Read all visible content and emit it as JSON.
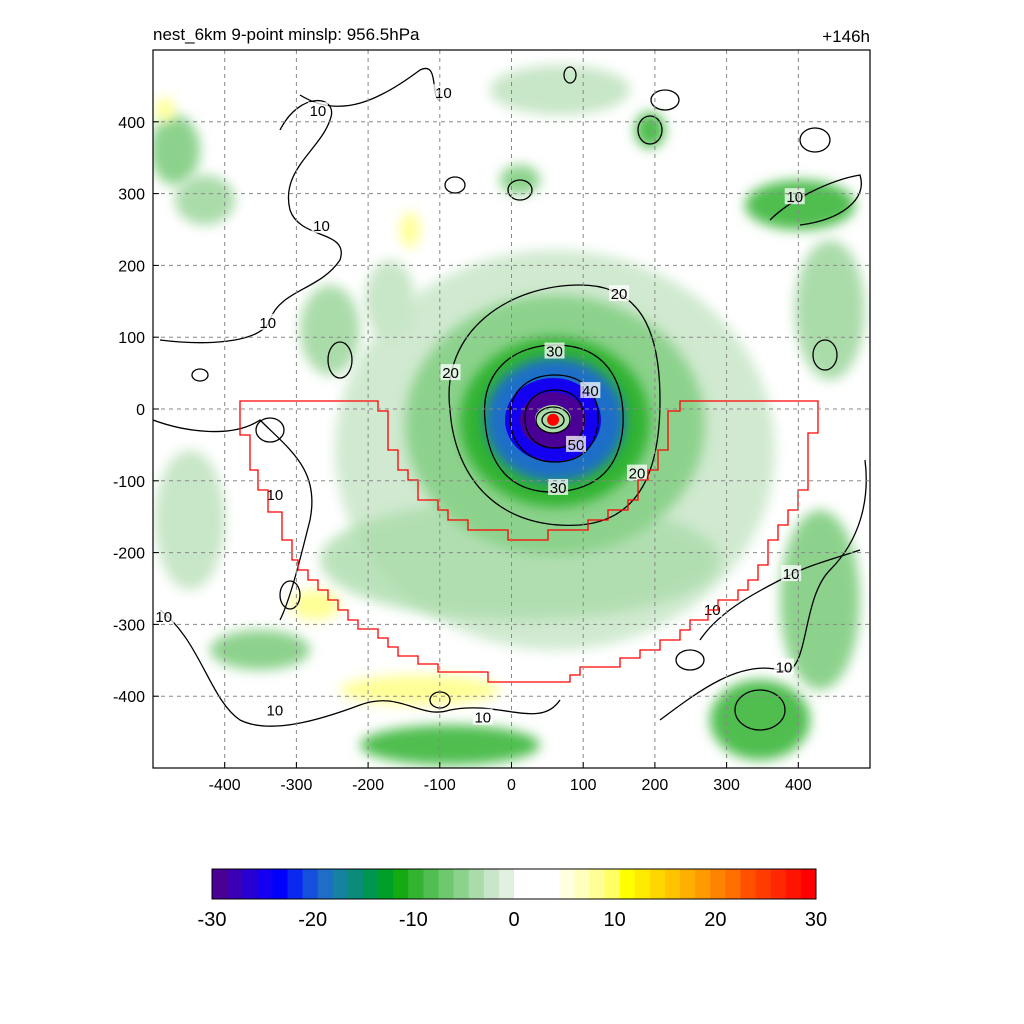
{
  "chart_data": {
    "type": "heatmap",
    "title": "nest_6km  9-point minslp: 956.5hPa",
    "time_label": "+146h",
    "x_ticks": [
      -400,
      -300,
      -200,
      -100,
      0,
      100,
      200,
      300,
      400
    ],
    "y_ticks": [
      400,
      300,
      200,
      100,
      0,
      -100,
      -200,
      -300,
      -400
    ],
    "xlim": [
      -500,
      500
    ],
    "ylim": [
      -500,
      500
    ],
    "grid": true,
    "grid_style": "dashed",
    "colorbar": {
      "min": -30,
      "max": 30,
      "ticks": [
        -30,
        -20,
        -10,
        0,
        10,
        20,
        30
      ],
      "colors": [
        "#4b0095",
        "#3c00b4",
        "#2800d2",
        "#1400f0",
        "#0000ff",
        "#0a28f0",
        "#1450dc",
        "#1e6ec8",
        "#1482a0",
        "#0a8c78",
        "#009650",
        "#00a028",
        "#14aa14",
        "#32b432",
        "#50be50",
        "#6ec86e",
        "#8cd28c",
        "#aadcaa",
        "#c8e6c8",
        "#e1f1e1",
        "#ffffff",
        "#ffffff",
        "#ffffff",
        "#ffffe1",
        "#ffffbe",
        "#ffff96",
        "#ffff64",
        "#ffff00",
        "#ffeb00",
        "#ffd700",
        "#ffc300",
        "#ffaf00",
        "#ff9b00",
        "#ff8200",
        "#ff6e00",
        "#ff5000",
        "#ff3c00",
        "#ff2800",
        "#ff1400",
        "#ff0000"
      ]
    },
    "contour_labels": [
      {
        "text": "10",
        "x": -270,
        "y": 415
      },
      {
        "text": "10",
        "x": -95,
        "y": 440
      },
      {
        "text": "10",
        "x": -265,
        "y": 255
      },
      {
        "text": "10",
        "x": -340,
        "y": 120
      },
      {
        "text": "10",
        "x": -330,
        "y": -120
      },
      {
        "text": "10",
        "x": -485,
        "y": -290
      },
      {
        "text": "10",
        "x": -330,
        "y": -420
      },
      {
        "text": "10",
        "x": -40,
        "y": -430
      },
      {
        "text": "10",
        "x": 395,
        "y": 295
      },
      {
        "text": "10",
        "x": 390,
        "y": -230
      },
      {
        "text": "10",
        "x": 280,
        "y": -280
      },
      {
        "text": "10",
        "x": 380,
        "y": -360
      },
      {
        "text": "20",
        "x": 150,
        "y": 160
      },
      {
        "text": "20",
        "x": -85,
        "y": 50
      },
      {
        "text": "20",
        "x": 175,
        "y": -90
      },
      {
        "text": "30",
        "x": 60,
        "y": 80
      },
      {
        "text": "30",
        "x": 65,
        "y": -110
      },
      {
        "text": "40",
        "x": 110,
        "y": 25
      },
      {
        "text": "50",
        "x": 90,
        "y": -50
      }
    ],
    "storm_center": {
      "x": 58,
      "y": -15
    },
    "min_slp_hpa": 956.5
  }
}
